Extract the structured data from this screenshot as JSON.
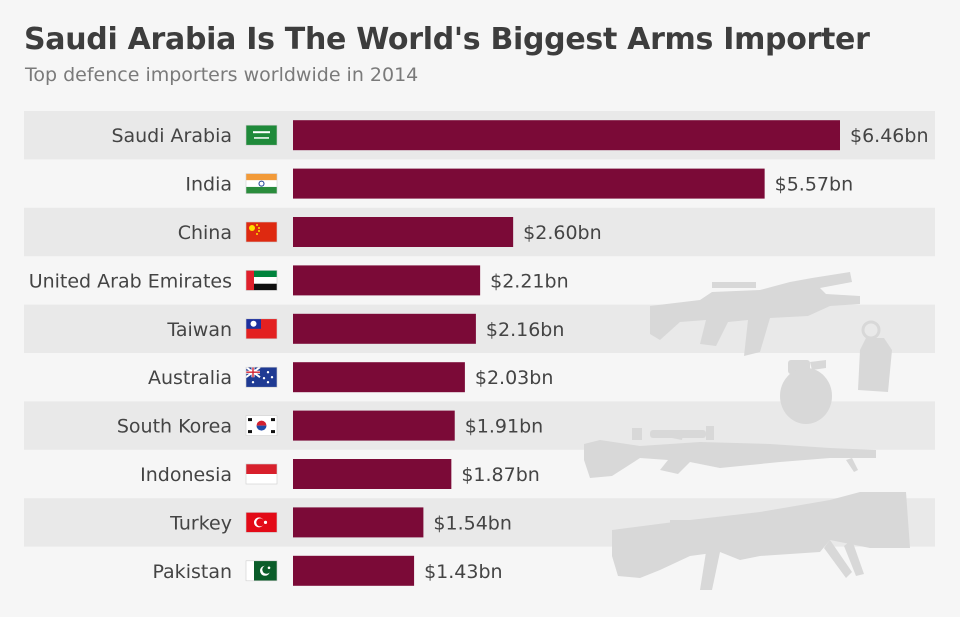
{
  "header": {
    "title": "Saudi Arabia Is The World's Biggest Arms Importer",
    "subtitle": "Top defence importers worldwide in 2014"
  },
  "colors": {
    "bar": "#7b0a37",
    "stripe": "#e9e9e9",
    "background": "#f6f6f6",
    "weapon_silhouette": "#d8d8d8"
  },
  "decorations": [
    "assault-rifle-icon",
    "hand-grenade-icon",
    "smoke-grenade-icon",
    "sniper-rifle-icon",
    "rocket-launcher-icon"
  ],
  "chart_data": {
    "type": "bar",
    "orientation": "horizontal",
    "title": "Saudi Arabia Is The World's Biggest Arms Importer",
    "subtitle": "Top defence importers worldwide in 2014",
    "categories": [
      "Saudi Arabia",
      "India",
      "China",
      "United Arab Emirates",
      "Taiwan",
      "Australia",
      "South Korea",
      "Indonesia",
      "Turkey",
      "Pakistan"
    ],
    "values": [
      6.46,
      5.57,
      2.6,
      2.21,
      2.16,
      2.03,
      1.91,
      1.87,
      1.54,
      1.43
    ],
    "value_labels": [
      "$6.46bn",
      "$5.57bn",
      "$2.60bn",
      "$2.21bn",
      "$2.16bn",
      "$2.03bn",
      "$1.91bn",
      "$1.87bn",
      "$1.54bn",
      "$1.43bn"
    ],
    "flags": [
      "saudi-arabia-flag-icon",
      "india-flag-icon",
      "china-flag-icon",
      "uae-flag-icon",
      "taiwan-flag-icon",
      "australia-flag-icon",
      "south-korea-flag-icon",
      "indonesia-flag-icon",
      "turkey-flag-icon",
      "pakistan-flag-icon"
    ],
    "xlabel": "",
    "ylabel": "",
    "xlim": [
      0,
      6.46
    ],
    "grid": false,
    "legend": "none"
  }
}
